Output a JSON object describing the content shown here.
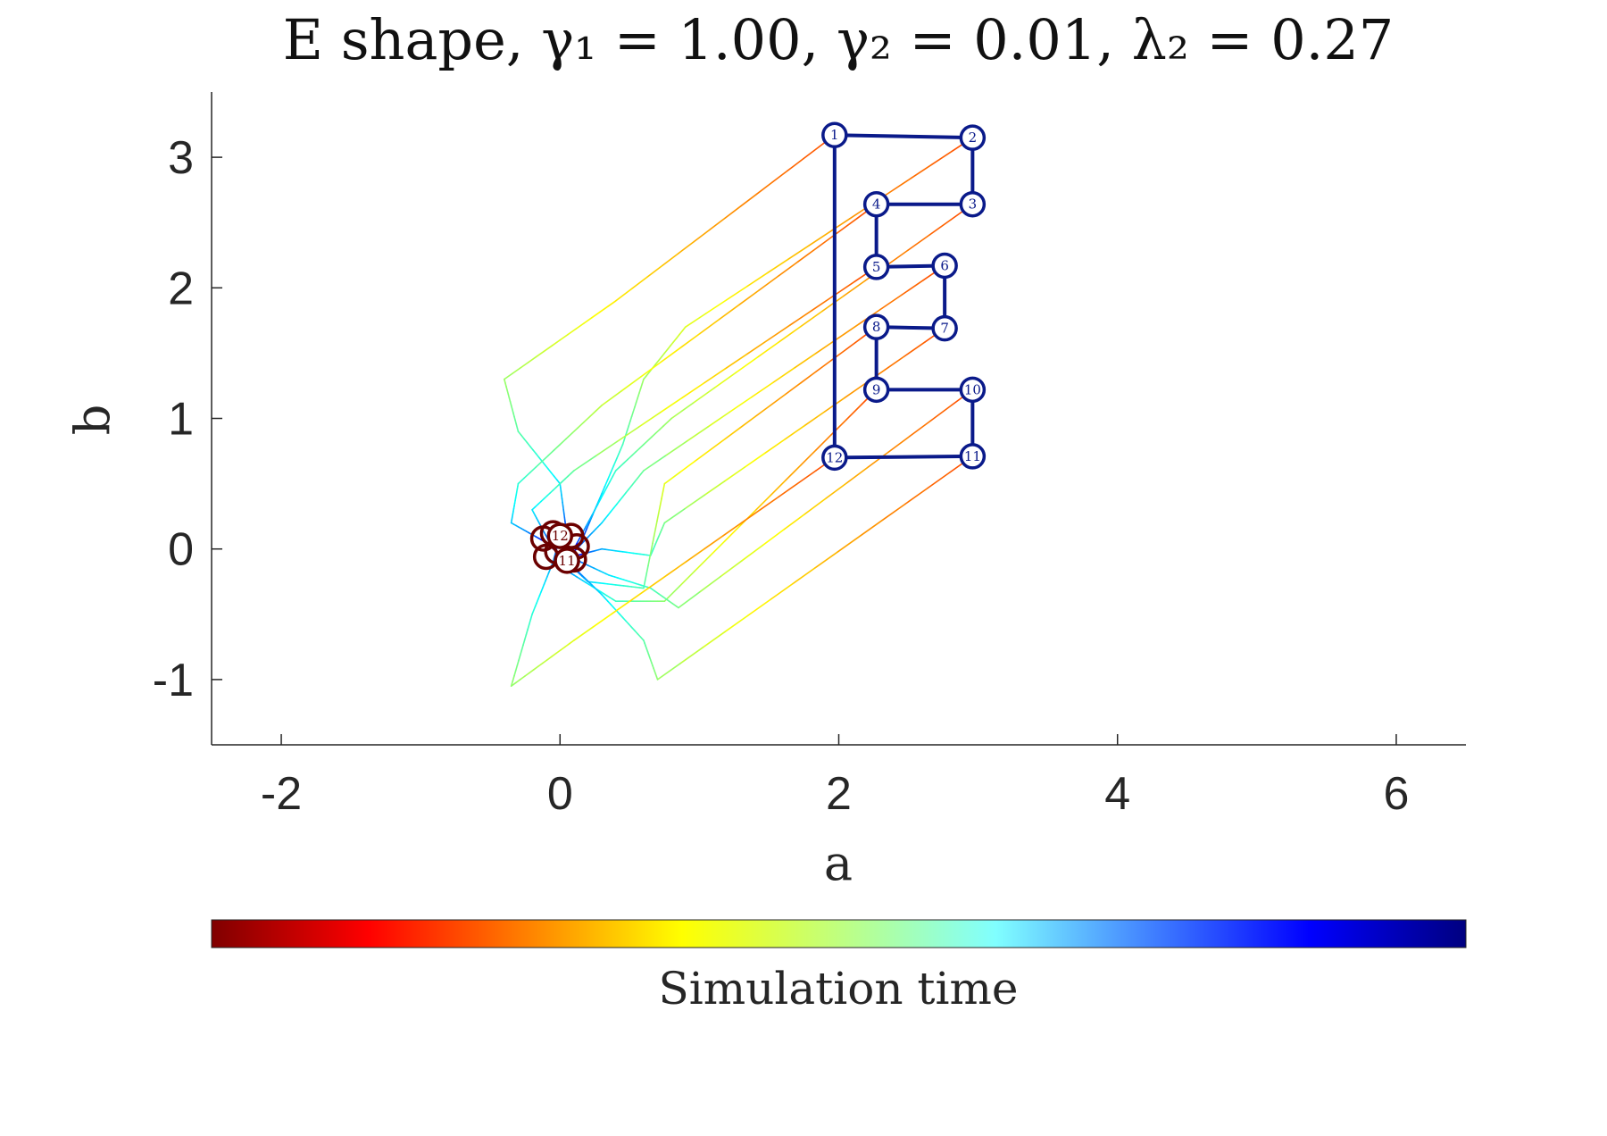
{
  "chart_data": {
    "type": "line",
    "title": "E shape, γ₁ = 1.00, γ₂ = 0.01, λ₂ = 0.27",
    "xlabel": "a",
    "ylabel": "b",
    "xlim": [
      -2.5,
      6.5
    ],
    "ylim": [
      -1.5,
      3.5
    ],
    "xticks": [
      -2,
      0,
      2,
      4,
      6
    ],
    "yticks": [
      -1,
      0,
      1,
      2,
      3
    ],
    "grid": false,
    "colorbar": {
      "label": "Simulation time",
      "colormap": "jet",
      "placement": "bottom"
    },
    "target_nodes": [
      {
        "id": "1",
        "a": 1.97,
        "b": 3.17
      },
      {
        "id": "2",
        "a": 2.96,
        "b": 3.15
      },
      {
        "id": "3",
        "a": 2.96,
        "b": 2.64
      },
      {
        "id": "4",
        "a": 2.27,
        "b": 2.64
      },
      {
        "id": "5",
        "a": 2.27,
        "b": 2.16
      },
      {
        "id": "6",
        "a": 2.76,
        "b": 2.17
      },
      {
        "id": "7",
        "a": 2.76,
        "b": 1.69
      },
      {
        "id": "8",
        "a": 2.27,
        "b": 1.7
      },
      {
        "id": "9",
        "a": 2.27,
        "b": 1.22
      },
      {
        "id": "10",
        "a": 2.96,
        "b": 1.22
      },
      {
        "id": "11",
        "a": 2.96,
        "b": 0.71
      },
      {
        "id": "12",
        "a": 1.97,
        "b": 0.7
      }
    ],
    "target_edges": [
      [
        1,
        2
      ],
      [
        2,
        3
      ],
      [
        3,
        4
      ],
      [
        4,
        5
      ],
      [
        5,
        6
      ],
      [
        6,
        7
      ],
      [
        7,
        8
      ],
      [
        8,
        9
      ],
      [
        9,
        10
      ],
      [
        10,
        11
      ],
      [
        11,
        12
      ],
      [
        12,
        1
      ]
    ],
    "start_nodes": [
      {
        "id": "12",
        "a": 0.0,
        "b": 0.1
      },
      {
        "id": "11",
        "a": 0.05,
        "b": -0.09
      }
    ],
    "trajectories": [
      {
        "id": "1",
        "points": [
          [
            1.97,
            3.17
          ],
          [
            0.4,
            1.9
          ],
          [
            -0.4,
            1.3
          ],
          [
            -0.3,
            0.9
          ],
          [
            0.0,
            0.5
          ],
          [
            0.05,
            0.1
          ]
        ]
      },
      {
        "id": "2",
        "points": [
          [
            2.96,
            3.15
          ],
          [
            0.9,
            1.7
          ],
          [
            0.6,
            1.3
          ],
          [
            0.45,
            0.8
          ],
          [
            0.15,
            0.05
          ]
        ]
      },
      {
        "id": "3",
        "points": [
          [
            2.96,
            2.64
          ],
          [
            0.8,
            1.0
          ],
          [
            0.4,
            0.6
          ],
          [
            0.1,
            0.0
          ]
        ]
      },
      {
        "id": "4",
        "points": [
          [
            2.27,
            2.64
          ],
          [
            0.3,
            1.1
          ],
          [
            -0.3,
            0.5
          ],
          [
            -0.35,
            0.2
          ],
          [
            -0.1,
            0.05
          ]
        ]
      },
      {
        "id": "5",
        "points": [
          [
            2.27,
            2.16
          ],
          [
            0.1,
            0.6
          ],
          [
            -0.2,
            0.3
          ],
          [
            -0.05,
            0.0
          ]
        ]
      },
      {
        "id": "6",
        "points": [
          [
            2.76,
            2.17
          ],
          [
            0.6,
            0.6
          ],
          [
            0.3,
            0.2
          ],
          [
            0.1,
            -0.02
          ]
        ]
      },
      {
        "id": "7",
        "points": [
          [
            2.76,
            1.69
          ],
          [
            0.75,
            0.2
          ],
          [
            0.65,
            -0.05
          ],
          [
            0.3,
            0.0
          ],
          [
            0.12,
            -0.05
          ]
        ]
      },
      {
        "id": "8",
        "points": [
          [
            2.27,
            1.7
          ],
          [
            0.75,
            0.5
          ],
          [
            0.6,
            -0.3
          ],
          [
            0.2,
            -0.25
          ],
          [
            0.0,
            -0.05
          ]
        ]
      },
      {
        "id": "9",
        "points": [
          [
            2.27,
            1.22
          ],
          [
            0.75,
            -0.4
          ],
          [
            0.4,
            -0.4
          ],
          [
            0.1,
            -0.2
          ],
          [
            -0.05,
            -0.1
          ]
        ]
      },
      {
        "id": "10",
        "points": [
          [
            2.96,
            1.22
          ],
          [
            0.85,
            -0.45
          ],
          [
            0.65,
            -0.3
          ],
          [
            0.35,
            -0.2
          ],
          [
            0.05,
            -0.05
          ]
        ]
      },
      {
        "id": "11",
        "points": [
          [
            2.96,
            0.71
          ],
          [
            0.7,
            -1.0
          ],
          [
            0.6,
            -0.7
          ],
          [
            0.3,
            -0.35
          ],
          [
            0.05,
            -0.09
          ]
        ]
      },
      {
        "id": "12",
        "points": [
          [
            1.97,
            0.7
          ],
          [
            0.1,
            -0.7
          ],
          [
            -0.35,
            -1.05
          ],
          [
            -0.2,
            -0.5
          ],
          [
            -0.05,
            -0.1
          ],
          [
            0.0,
            0.1
          ]
        ]
      }
    ]
  }
}
